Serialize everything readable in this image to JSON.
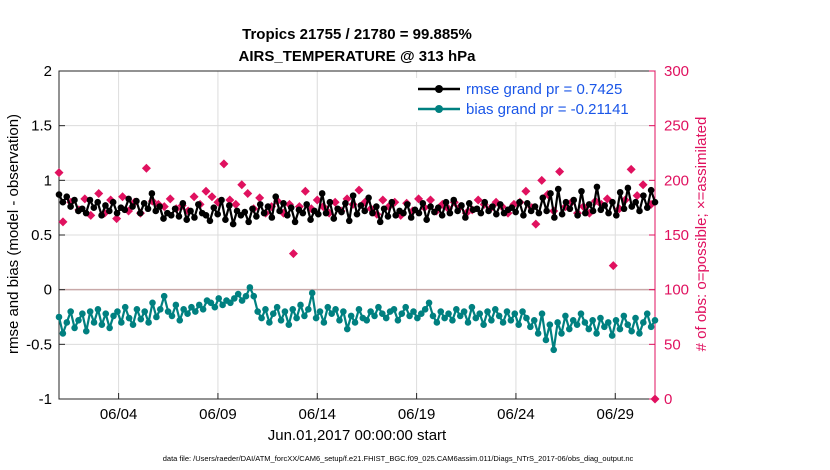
{
  "chart_data": {
    "type": "line",
    "title_line1": "Tropics 21755 / 21780 = 99.885%",
    "title_line2": "AIRS_TEMPERATURE @ 313 hPa",
    "xlabel": "Jun.01,2017 00:00:00 start",
    "ylabel_left": "rmse and bias (model - observation)",
    "ylabel_right": "# of obs: o=possible; ×=assimilated",
    "footnote": "data file: /Users/raeder/DAI/ATM_forcXX/CAM6_setup/f.e21.FHIST_BGC.f09_025.CAM6assim.011/Diags_NTrS_2017-06/obs_diag_output.nc",
    "xlim": [
      1,
      31
    ],
    "x_ticks": [
      4,
      9,
      14,
      19,
      24,
      29
    ],
    "x_tick_labels": [
      "06/04",
      "06/09",
      "06/14",
      "06/19",
      "06/24",
      "06/29"
    ],
    "ylim_left": [
      -1,
      2
    ],
    "y_ticks_left": [
      "-1",
      "-0.5",
      "0",
      "0.5",
      "1",
      "1.5",
      "2"
    ],
    "ylim_right": [
      0,
      300
    ],
    "y_ticks_right": [
      "0",
      "50",
      "100",
      "150",
      "200",
      "250",
      "300"
    ],
    "grid": true,
    "legend_position": "top-right",
    "series": [
      {
        "name": "rmse",
        "legend_label": "rmse grand pr = 0.7425",
        "color": "#000000",
        "axis": "left",
        "values": [
          0.87,
          0.8,
          0.85,
          0.76,
          0.82,
          0.72,
          0.74,
          0.7,
          0.82,
          0.75,
          0.8,
          0.68,
          0.77,
          0.72,
          0.8,
          0.7,
          0.75,
          0.73,
          0.83,
          0.76,
          0.81,
          0.7,
          0.79,
          0.74,
          0.88,
          0.72,
          0.76,
          0.65,
          0.7,
          0.68,
          0.74,
          0.67,
          0.79,
          0.64,
          0.72,
          0.66,
          0.78,
          0.7,
          0.68,
          0.63,
          0.75,
          0.69,
          0.82,
          0.64,
          0.77,
          0.6,
          0.72,
          0.68,
          0.71,
          0.62,
          0.74,
          0.67,
          0.78,
          0.7,
          0.76,
          0.66,
          0.85,
          0.72,
          0.79,
          0.68,
          0.75,
          0.62,
          0.73,
          0.7,
          0.78,
          0.64,
          0.72,
          0.69,
          0.88,
          0.7,
          0.8,
          0.65,
          0.74,
          0.71,
          0.79,
          0.63,
          0.86,
          0.69,
          0.77,
          0.72,
          0.84,
          0.7,
          0.76,
          0.62,
          0.74,
          0.67,
          0.8,
          0.68,
          0.72,
          0.7,
          0.78,
          0.66,
          0.73,
          0.7,
          0.79,
          0.64,
          0.76,
          0.71,
          0.75,
          0.68,
          0.8,
          0.7,
          0.82,
          0.72,
          0.77,
          0.66,
          0.79,
          0.73,
          0.74,
          0.7,
          0.8,
          0.72,
          0.76,
          0.69,
          0.78,
          0.7,
          0.73,
          0.75,
          0.71,
          0.8,
          0.68,
          0.79,
          0.72,
          0.76,
          0.7,
          0.84,
          0.72,
          0.88,
          0.66,
          0.92,
          0.69,
          0.8,
          0.74,
          0.82,
          0.68,
          0.9,
          0.7,
          0.78,
          0.72,
          0.94,
          0.73,
          0.77,
          0.7,
          0.8,
          0.68,
          0.89,
          0.74,
          0.93,
          0.76,
          0.8,
          0.72,
          0.86,
          0.75,
          0.91,
          0.8
        ]
      },
      {
        "name": "bias",
        "legend_label": "bias grand pr = -0.21141",
        "color": "#008080",
        "axis": "left",
        "values": [
          -0.25,
          -0.4,
          -0.3,
          -0.2,
          -0.35,
          -0.28,
          -0.22,
          -0.38,
          -0.2,
          -0.3,
          -0.18,
          -0.32,
          -0.22,
          -0.35,
          -0.24,
          -0.2,
          -0.3,
          -0.16,
          -0.26,
          -0.32,
          -0.18,
          -0.27,
          -0.2,
          -0.3,
          -0.12,
          -0.25,
          -0.18,
          -0.06,
          -0.2,
          -0.24,
          -0.14,
          -0.28,
          -0.18,
          -0.22,
          -0.16,
          -0.2,
          -0.14,
          -0.18,
          -0.1,
          -0.12,
          -0.16,
          -0.08,
          -0.14,
          -0.1,
          -0.12,
          -0.08,
          -0.04,
          -0.1,
          -0.06,
          0.02,
          -0.06,
          -0.2,
          -0.26,
          -0.18,
          -0.3,
          -0.22,
          -0.16,
          -0.28,
          -0.2,
          -0.32,
          -0.18,
          -0.26,
          -0.14,
          -0.24,
          -0.18,
          -0.03,
          -0.26,
          -0.2,
          -0.3,
          -0.16,
          -0.22,
          -0.18,
          -0.28,
          -0.2,
          -0.36,
          -0.24,
          -0.3,
          -0.18,
          -0.26,
          -0.28,
          -0.2,
          -0.24,
          -0.16,
          -0.22,
          -0.26,
          -0.2,
          -0.18,
          -0.28,
          -0.22,
          -0.16,
          -0.24,
          -0.2,
          -0.26,
          -0.22,
          -0.18,
          -0.12,
          -0.24,
          -0.3,
          -0.2,
          -0.26,
          -0.22,
          -0.28,
          -0.18,
          -0.24,
          -0.2,
          -0.3,
          -0.16,
          -0.26,
          -0.22,
          -0.32,
          -0.2,
          -0.28,
          -0.18,
          -0.24,
          -0.3,
          -0.2,
          -0.28,
          -0.22,
          -0.32,
          -0.2,
          -0.26,
          -0.34,
          -0.28,
          -0.4,
          -0.22,
          -0.46,
          -0.32,
          -0.55,
          -0.3,
          -0.4,
          -0.24,
          -0.36,
          -0.28,
          -0.32,
          -0.22,
          -0.3,
          -0.36,
          -0.28,
          -0.4,
          -0.26,
          -0.34,
          -0.3,
          -0.42,
          -0.28,
          -0.36,
          -0.24,
          -0.32,
          -0.38,
          -0.26,
          -0.4,
          -0.3,
          -0.22,
          -0.34,
          -0.28
        ]
      },
      {
        "name": "obs_assimilated",
        "legend_label": "",
        "color": "#e0115f",
        "axis": "right",
        "points": [
          [
            1.0,
            207
          ],
          [
            1.2,
            162
          ],
          [
            1.6,
            180
          ],
          [
            2.0,
            173
          ],
          [
            2.3,
            183
          ],
          [
            2.6,
            168
          ],
          [
            3.0,
            188
          ],
          [
            3.3,
            170
          ],
          [
            3.6,
            182
          ],
          [
            3.9,
            165
          ],
          [
            4.2,
            185
          ],
          [
            4.5,
            172
          ],
          [
            4.8,
            180
          ],
          [
            5.1,
            170
          ],
          [
            5.4,
            211
          ],
          [
            5.7,
            181
          ],
          [
            6.0,
            178
          ],
          [
            6.3,
            176
          ],
          [
            6.6,
            183
          ],
          [
            6.9,
            174
          ],
          [
            7.2,
            177
          ],
          [
            7.5,
            172
          ],
          [
            7.8,
            185
          ],
          [
            8.1,
            178
          ],
          [
            8.4,
            190
          ],
          [
            8.7,
            185
          ],
          [
            9.0,
            180
          ],
          [
            9.3,
            215
          ],
          [
            9.6,
            182
          ],
          [
            9.9,
            178
          ],
          [
            10.2,
            196
          ],
          [
            10.5,
            188
          ],
          [
            10.8,
            174
          ],
          [
            11.1,
            184
          ],
          [
            11.4,
            170
          ],
          [
            11.7,
            176
          ],
          [
            12.0,
            181
          ],
          [
            12.3,
            170
          ],
          [
            12.6,
            178
          ],
          [
            12.8,
            133
          ],
          [
            13.1,
            176
          ],
          [
            13.4,
            190
          ],
          [
            13.7,
            174
          ],
          [
            14.0,
            182
          ],
          [
            14.3,
            176
          ],
          [
            14.6,
            170
          ],
          [
            14.9,
            180
          ],
          [
            15.2,
            172
          ],
          [
            15.5,
            183
          ],
          [
            15.8,
            178
          ],
          [
            16.1,
            191
          ],
          [
            16.4,
            180
          ],
          [
            16.7,
            174
          ],
          [
            17.0,
            169
          ],
          [
            17.3,
            182
          ],
          [
            17.6,
            176
          ],
          [
            17.9,
            180
          ],
          [
            18.2,
            168
          ],
          [
            18.5,
            179
          ],
          [
            18.8,
            172
          ],
          [
            19.1,
            183
          ],
          [
            19.4,
            175
          ],
          [
            19.7,
            182
          ],
          [
            20.0,
            172
          ],
          [
            20.3,
            178
          ],
          [
            20.6,
            174
          ],
          [
            20.9,
            180
          ],
          [
            21.2,
            176
          ],
          [
            21.5,
            170
          ],
          [
            21.8,
            173
          ],
          [
            22.1,
            182
          ],
          [
            22.4,
            178
          ],
          [
            22.7,
            174
          ],
          [
            23.0,
            180
          ],
          [
            23.3,
            176
          ],
          [
            23.6,
            170
          ],
          [
            23.9,
            178
          ],
          [
            24.2,
            180
          ],
          [
            24.5,
            190
          ],
          [
            24.8,
            175
          ],
          [
            25.0,
            160
          ],
          [
            25.3,
            200
          ],
          [
            25.6,
            187
          ],
          [
            25.9,
            172
          ],
          [
            26.2,
            208
          ],
          [
            26.5,
            176
          ],
          [
            26.8,
            180
          ],
          [
            27.1,
            170
          ],
          [
            27.4,
            176
          ],
          [
            27.7,
            170
          ],
          [
            28.0,
            181
          ],
          [
            28.3,
            178
          ],
          [
            28.6,
            183
          ],
          [
            28.9,
            122
          ],
          [
            29.2,
            174
          ],
          [
            29.5,
            182
          ],
          [
            29.8,
            210
          ],
          [
            30.1,
            186
          ],
          [
            30.4,
            196
          ],
          [
            30.8,
            178
          ],
          [
            31.0,
            0
          ]
        ]
      }
    ]
  }
}
